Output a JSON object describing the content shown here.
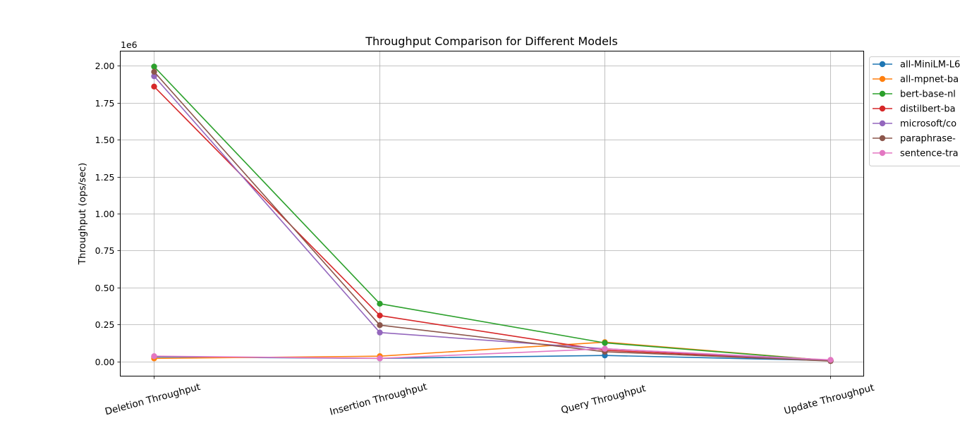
{
  "chart_data": {
    "type": "line",
    "title": "Throughput Comparison for Different Models",
    "xlabel": "",
    "ylabel": "Throughput (ops/sec)",
    "y_offset_label": "1e6",
    "categories": [
      "Deletion Throughput",
      "Insertion Throughput",
      "Query Throughput",
      "Update Throughput"
    ],
    "ylim": [
      -0.1,
      2.1
    ],
    "y_ticks": [
      0.0,
      0.25,
      0.5,
      0.75,
      1.0,
      1.25,
      1.5,
      1.75,
      2.0
    ],
    "y_tick_labels": [
      "0.00",
      "0.25",
      "0.50",
      "0.75",
      "1.00",
      "1.25",
      "1.50",
      "1.75",
      "2.00"
    ],
    "grid": true,
    "legend_position": "outside-right-top",
    "series": [
      {
        "name": "all-MiniLM-L6",
        "color": "#1f77b4",
        "values": [
          0.03,
          0.02,
          0.04,
          0.005
        ]
      },
      {
        "name": "all-mpnet-ba",
        "color": "#ff7f0e",
        "values": [
          0.02,
          0.035,
          0.13,
          0.005
        ]
      },
      {
        "name": "bert-base-nl",
        "color": "#2ca02c",
        "values": [
          1.995,
          0.39,
          0.125,
          0.005
        ]
      },
      {
        "name": "distilbert-ba",
        "color": "#d62728",
        "values": [
          1.86,
          0.31,
          0.075,
          0.005
        ]
      },
      {
        "name": "microsoft/co",
        "color": "#9467bd",
        "values": [
          1.93,
          0.195,
          0.085,
          0.005
        ]
      },
      {
        "name": "paraphrase-",
        "color": "#8c564b",
        "values": [
          1.96,
          0.245,
          0.065,
          0.002
        ]
      },
      {
        "name": "sentence-tra",
        "color": "#e377c2",
        "values": [
          0.035,
          0.02,
          0.085,
          0.01
        ]
      }
    ]
  }
}
